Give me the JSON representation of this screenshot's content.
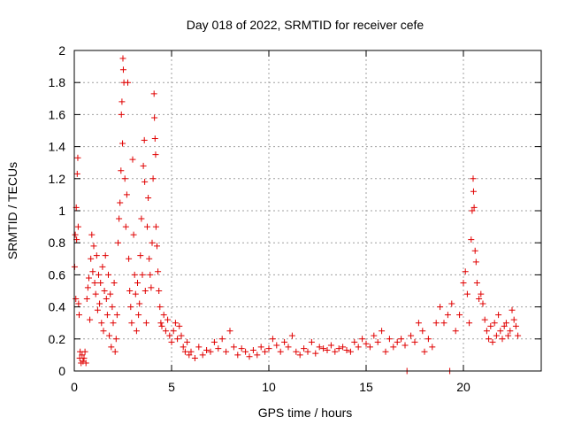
{
  "chart_data": {
    "type": "scatter",
    "title": "Day 018 of 2022, SRMTID for receiver cefe",
    "xlabel": "GPS time / hours",
    "ylabel": "SRMTID / TECUs",
    "xlim": [
      0,
      24
    ],
    "ylim": [
      0,
      2
    ],
    "x_ticks": [
      0,
      5,
      10,
      15,
      20
    ],
    "x_tick_labels": [
      "0",
      "5",
      "10",
      "15",
      "20"
    ],
    "y_ticks": [
      0,
      0.2,
      0.4,
      0.6,
      0.8,
      1,
      1.2,
      1.4,
      1.6,
      1.8,
      2
    ],
    "y_tick_labels": [
      "0",
      "0.2",
      "0.4",
      "0.6",
      "0.8",
      "1",
      "1.2",
      "1.4",
      "1.6",
      "1.8",
      "2"
    ],
    "grid": true,
    "marker": "+",
    "color": "#e00000",
    "series": [
      {
        "name": "SRMTID",
        "points": [
          [
            0.02,
            0.65
          ],
          [
            0.05,
            0.85
          ],
          [
            0.08,
            0.45
          ],
          [
            0.1,
            1.02
          ],
          [
            0.12,
            0.82
          ],
          [
            0.15,
            1.23
          ],
          [
            0.18,
            1.33
          ],
          [
            0.2,
            0.9
          ],
          [
            0.22,
            0.42
          ],
          [
            0.25,
            0.35
          ],
          [
            0.28,
            0.08
          ],
          [
            0.3,
            0.12
          ],
          [
            0.35,
            0.05
          ],
          [
            0.4,
            0.1
          ],
          [
            0.45,
            0.06
          ],
          [
            0.5,
            0.08
          ],
          [
            0.55,
            0.12
          ],
          [
            0.6,
            0.05
          ],
          [
            0.65,
            0.45
          ],
          [
            0.7,
            0.52
          ],
          [
            0.75,
            0.58
          ],
          [
            0.8,
            0.32
          ],
          [
            0.85,
            0.7
          ],
          [
            0.9,
            0.85
          ],
          [
            0.95,
            0.62
          ],
          [
            1.0,
            0.78
          ],
          [
            1.05,
            0.55
          ],
          [
            1.1,
            0.48
          ],
          [
            1.15,
            0.72
          ],
          [
            1.2,
            0.38
          ],
          [
            1.25,
            0.6
          ],
          [
            1.3,
            0.42
          ],
          [
            1.35,
            0.55
          ],
          [
            1.4,
            0.3
          ],
          [
            1.45,
            0.65
          ],
          [
            1.5,
            0.25
          ],
          [
            1.55,
            0.5
          ],
          [
            1.6,
            0.72
          ],
          [
            1.65,
            0.45
          ],
          [
            1.7,
            0.35
          ],
          [
            1.75,
            0.6
          ],
          [
            1.8,
            0.22
          ],
          [
            1.85,
            0.48
          ],
          [
            1.9,
            0.15
          ],
          [
            1.95,
            0.4
          ],
          [
            2.0,
            0.3
          ],
          [
            2.05,
            0.55
          ],
          [
            2.1,
            0.12
          ],
          [
            2.15,
            0.2
          ],
          [
            2.2,
            0.35
          ],
          [
            2.25,
            0.8
          ],
          [
            2.3,
            0.95
          ],
          [
            2.35,
            1.05
          ],
          [
            2.4,
            1.25
          ],
          [
            2.42,
            1.6
          ],
          [
            2.45,
            1.68
          ],
          [
            2.48,
            1.42
          ],
          [
            2.5,
            1.95
          ],
          [
            2.52,
            1.88
          ],
          [
            2.55,
            1.8
          ],
          [
            2.6,
            1.2
          ],
          [
            2.65,
            0.9
          ],
          [
            2.7,
            1.1
          ],
          [
            2.75,
            1.8
          ],
          [
            2.8,
            0.7
          ],
          [
            2.85,
            0.5
          ],
          [
            2.9,
            0.4
          ],
          [
            2.95,
            0.3
          ],
          [
            3.0,
            1.32
          ],
          [
            3.05,
            0.85
          ],
          [
            3.1,
            0.6
          ],
          [
            3.15,
            0.48
          ],
          [
            3.2,
            0.25
          ],
          [
            3.25,
            0.55
          ],
          [
            3.3,
            0.35
          ],
          [
            3.35,
            0.42
          ],
          [
            3.4,
            0.72
          ],
          [
            3.45,
            0.95
          ],
          [
            3.5,
            0.6
          ],
          [
            3.55,
            1.28
          ],
          [
            3.6,
            1.44
          ],
          [
            3.62,
            1.18
          ],
          [
            3.65,
            0.5
          ],
          [
            3.7,
            0.3
          ],
          [
            3.75,
            0.9
          ],
          [
            3.8,
            1.08
          ],
          [
            3.85,
            0.7
          ],
          [
            3.9,
            0.6
          ],
          [
            3.95,
            0.52
          ],
          [
            4.0,
            0.8
          ],
          [
            4.05,
            1.2
          ],
          [
            4.1,
            1.73
          ],
          [
            4.12,
            1.58
          ],
          [
            4.15,
            1.45
          ],
          [
            4.18,
            1.35
          ],
          [
            4.2,
            0.9
          ],
          [
            4.25,
            0.78
          ],
          [
            4.3,
            0.62
          ],
          [
            4.35,
            0.5
          ],
          [
            4.4,
            0.4
          ],
          [
            4.45,
            0.3
          ],
          [
            4.5,
            0.28
          ],
          [
            4.6,
            0.35
          ],
          [
            4.7,
            0.25
          ],
          [
            4.8,
            0.32
          ],
          [
            4.9,
            0.22
          ],
          [
            5.0,
            0.18
          ],
          [
            5.1,
            0.25
          ],
          [
            5.2,
            0.3
          ],
          [
            5.3,
            0.2
          ],
          [
            5.4,
            0.28
          ],
          [
            5.5,
            0.22
          ],
          [
            5.6,
            0.15
          ],
          [
            5.7,
            0.12
          ],
          [
            5.8,
            0.18
          ],
          [
            5.9,
            0.1
          ],
          [
            6.0,
            0.12
          ],
          [
            6.2,
            0.08
          ],
          [
            6.4,
            0.15
          ],
          [
            6.6,
            0.1
          ],
          [
            6.8,
            0.13
          ],
          [
            7.0,
            0.12
          ],
          [
            7.2,
            0.18
          ],
          [
            7.4,
            0.14
          ],
          [
            7.6,
            0.2
          ],
          [
            7.8,
            0.12
          ],
          [
            8.0,
            0.25
          ],
          [
            8.2,
            0.15
          ],
          [
            8.4,
            0.1
          ],
          [
            8.6,
            0.14
          ],
          [
            8.8,
            0.12
          ],
          [
            9.0,
            0.09
          ],
          [
            9.2,
            0.13
          ],
          [
            9.4,
            0.1
          ],
          [
            9.6,
            0.15
          ],
          [
            9.8,
            0.12
          ],
          [
            10.0,
            0.14
          ],
          [
            10.2,
            0.2
          ],
          [
            10.4,
            0.16
          ],
          [
            10.6,
            0.12
          ],
          [
            10.8,
            0.18
          ],
          [
            11.0,
            0.15
          ],
          [
            11.2,
            0.22
          ],
          [
            11.4,
            0.12
          ],
          [
            11.6,
            0.1
          ],
          [
            11.8,
            0.14
          ],
          [
            12.0,
            0.12
          ],
          [
            12.2,
            0.18
          ],
          [
            12.4,
            0.11
          ],
          [
            12.6,
            0.15
          ],
          [
            12.8,
            0.14
          ],
          [
            13.0,
            0.13
          ],
          [
            13.2,
            0.16
          ],
          [
            13.4,
            0.12
          ],
          [
            13.6,
            0.14
          ],
          [
            13.8,
            0.15
          ],
          [
            14.0,
            0.13
          ],
          [
            14.2,
            0.12
          ],
          [
            14.4,
            0.18
          ],
          [
            14.6,
            0.15
          ],
          [
            14.8,
            0.2
          ],
          [
            15.0,
            0.17
          ],
          [
            15.2,
            0.15
          ],
          [
            15.4,
            0.22
          ],
          [
            15.6,
            0.18
          ],
          [
            15.8,
            0.25
          ],
          [
            16.0,
            0.12
          ],
          [
            16.2,
            0.2
          ],
          [
            16.4,
            0.15
          ],
          [
            16.6,
            0.18
          ],
          [
            16.8,
            0.2
          ],
          [
            17.0,
            0.16
          ],
          [
            17.1,
            0.0
          ],
          [
            17.3,
            0.22
          ],
          [
            17.5,
            0.18
          ],
          [
            17.7,
            0.3
          ],
          [
            17.9,
            0.25
          ],
          [
            18.0,
            0.12
          ],
          [
            18.2,
            0.2
          ],
          [
            18.4,
            0.15
          ],
          [
            18.6,
            0.3
          ],
          [
            18.8,
            0.4
          ],
          [
            19.0,
            0.3
          ],
          [
            19.2,
            0.35
          ],
          [
            19.3,
            0.0
          ],
          [
            19.4,
            0.42
          ],
          [
            19.6,
            0.25
          ],
          [
            19.8,
            0.35
          ],
          [
            20.0,
            0.55
          ],
          [
            20.1,
            0.62
          ],
          [
            20.2,
            0.48
          ],
          [
            20.3,
            0.3
          ],
          [
            20.4,
            0.82
          ],
          [
            20.45,
            1.0
          ],
          [
            20.5,
            1.2
          ],
          [
            20.52,
            1.12
          ],
          [
            20.55,
            1.02
          ],
          [
            20.6,
            0.75
          ],
          [
            20.65,
            0.68
          ],
          [
            20.7,
            0.55
          ],
          [
            20.8,
            0.45
          ],
          [
            20.9,
            0.48
          ],
          [
            21.0,
            0.42
          ],
          [
            21.1,
            0.32
          ],
          [
            21.2,
            0.25
          ],
          [
            21.3,
            0.2
          ],
          [
            21.4,
            0.28
          ],
          [
            21.5,
            0.18
          ],
          [
            21.6,
            0.3
          ],
          [
            21.7,
            0.22
          ],
          [
            21.8,
            0.35
          ],
          [
            21.9,
            0.25
          ],
          [
            22.0,
            0.2
          ],
          [
            22.1,
            0.28
          ],
          [
            22.2,
            0.3
          ],
          [
            22.3,
            0.22
          ],
          [
            22.4,
            0.25
          ],
          [
            22.5,
            0.38
          ],
          [
            22.6,
            0.32
          ],
          [
            22.7,
            0.28
          ],
          [
            22.8,
            0.22
          ]
        ]
      }
    ]
  }
}
